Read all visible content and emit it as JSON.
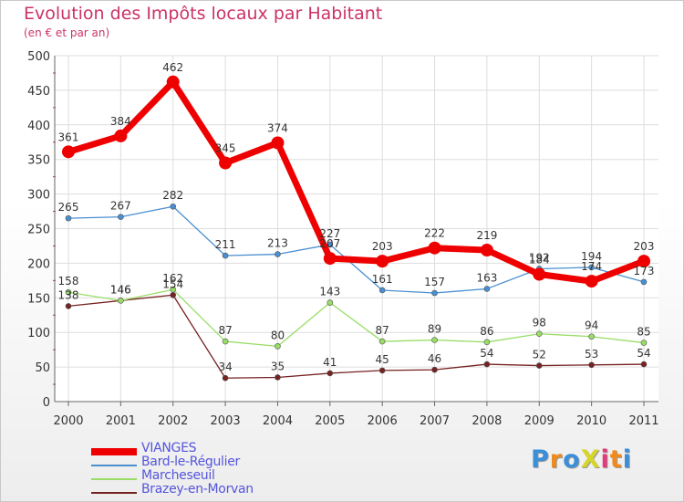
{
  "title": "Evolution des Impôts locaux par Habitant",
  "subtitle": "(en € et par an)",
  "logo": {
    "text": "ProXiti",
    "letter_colors": [
      "#3b8fd9",
      "#f08a1c",
      "#3b8fd9",
      "#d6d62a",
      "#e23a7a",
      "#f08a1c",
      "#3b8fd9"
    ]
  },
  "chart_data": {
    "type": "line",
    "x": [
      "2000",
      "2001",
      "2002",
      "2003",
      "2004",
      "2005",
      "2006",
      "2007",
      "2008",
      "2009",
      "2010",
      "2011"
    ],
    "ylim": [
      0,
      500
    ],
    "yticks": [
      0,
      50,
      100,
      150,
      200,
      250,
      300,
      350,
      400,
      450,
      500
    ],
    "grid": true,
    "legend_position": "bottom-left",
    "series": [
      {
        "name": "VIANGES",
        "color": "#ee0000",
        "emphasis": true,
        "values": [
          361,
          384,
          462,
          345,
          374,
          207,
          203,
          222,
          219,
          184,
          174,
          203
        ]
      },
      {
        "name": "Bard-le-Régulier",
        "color": "#4a8fd0",
        "emphasis": false,
        "values": [
          265,
          267,
          282,
          211,
          213,
          227,
          161,
          157,
          163,
          192,
          194,
          173
        ]
      },
      {
        "name": "Marcheseuil",
        "color": "#99dd66",
        "emphasis": false,
        "values": [
          158,
          146,
          162,
          87,
          80,
          143,
          87,
          89,
          86,
          98,
          94,
          85
        ]
      },
      {
        "name": "Brazey-en-Morvan",
        "color": "#772222",
        "emphasis": false,
        "values": [
          138,
          146,
          154,
          34,
          35,
          41,
          45,
          46,
          54,
          52,
          53,
          54
        ]
      }
    ]
  }
}
